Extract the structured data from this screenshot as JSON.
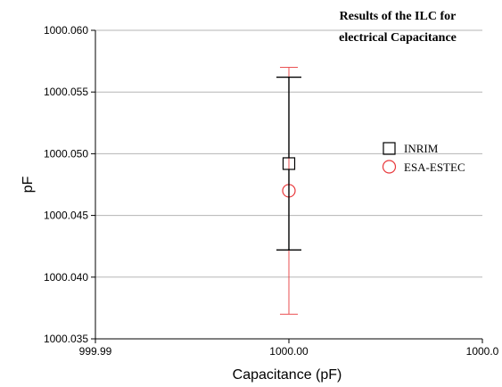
{
  "chart_data": {
    "type": "scatter",
    "title_lines": [
      "Results of the ILC for",
      "electrical Capacitance"
    ],
    "xlabel": "Capacitance (pF)",
    "ylabel": "pF",
    "xlim": [
      999.99,
      1000.01
    ],
    "ylim": [
      1000.035,
      1000.06
    ],
    "x_ticks": [
      999.99,
      1000.0,
      1000.01
    ],
    "x_tick_labels": [
      "999.99",
      "1000.00",
      "1000.0"
    ],
    "y_ticks": [
      1000.035,
      1000.04,
      1000.045,
      1000.05,
      1000.055,
      1000.06
    ],
    "y_tick_labels": [
      "1000.035",
      "1000.040",
      "1000.045",
      "1000.050",
      "1000.055",
      "1000.060"
    ],
    "grid": "horizontal",
    "legend_position": "right",
    "series": [
      {
        "name": "INRIM",
        "marker": "square",
        "color": "#000000",
        "x": 1000.0,
        "y": 1000.0492,
        "y_low": 1000.0422,
        "y_high": 1000.0562
      },
      {
        "name": "ESA-ESTEC",
        "marker": "circle",
        "color": "#e8393c",
        "x": 1000.0,
        "y": 1000.047,
        "y_low": 1000.037,
        "y_high": 1000.057
      }
    ]
  }
}
